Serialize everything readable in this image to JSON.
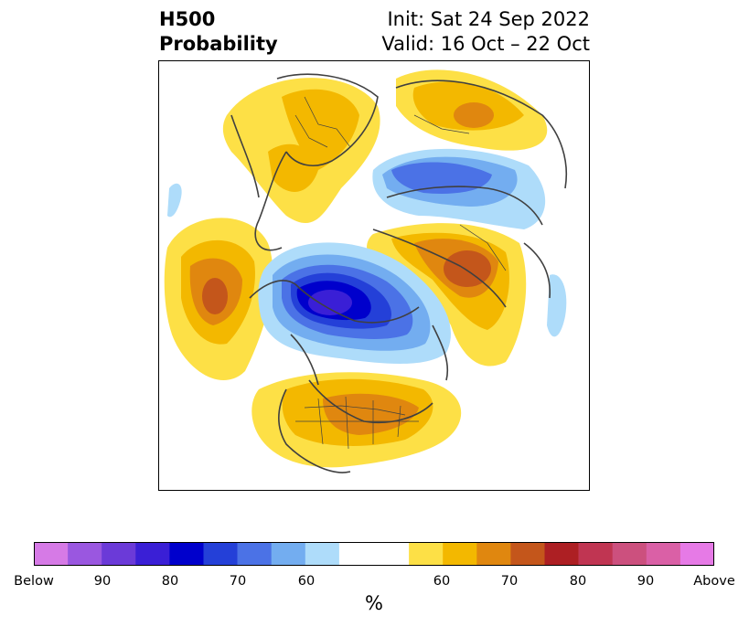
{
  "header": {
    "title_line1": "H500",
    "title_line2": "Probability",
    "init": "Init: Sat 24 Sep 2022",
    "valid": "Valid: 16 Oct – 22 Oct"
  },
  "colorbar": {
    "unit": "%",
    "tick_labels": [
      "Below",
      "90",
      "80",
      "70",
      "60",
      "60",
      "70",
      "80",
      "90",
      "Above"
    ],
    "colors": [
      "#d67ae6",
      "#9a57e0",
      "#6b3ad8",
      "#3a1fd6",
      "#0000cc",
      "#2440d8",
      "#4b72e6",
      "#73adf0",
      "#aedcfa",
      "#ffffff",
      "#fde046",
      "#f3b800",
      "#e0870f",
      "#c4561b",
      "#ad1f23",
      "#c03552",
      "#cc507e",
      "#da60a6",
      "#e67ae6"
    ]
  },
  "map_features": {
    "below_centers": [
      {
        "name": "arctic-low",
        "level": 80
      },
      {
        "name": "siberia-low",
        "level": 70
      }
    ],
    "above_centers": [
      {
        "name": "north-pacific-high",
        "level": 70
      },
      {
        "name": "eastern-us-high",
        "level": 70
      },
      {
        "name": "north-atlantic-high",
        "level": 70
      },
      {
        "name": "scandinavia-high",
        "level": 60
      },
      {
        "name": "east-siberia-high",
        "level": 60
      }
    ]
  }
}
